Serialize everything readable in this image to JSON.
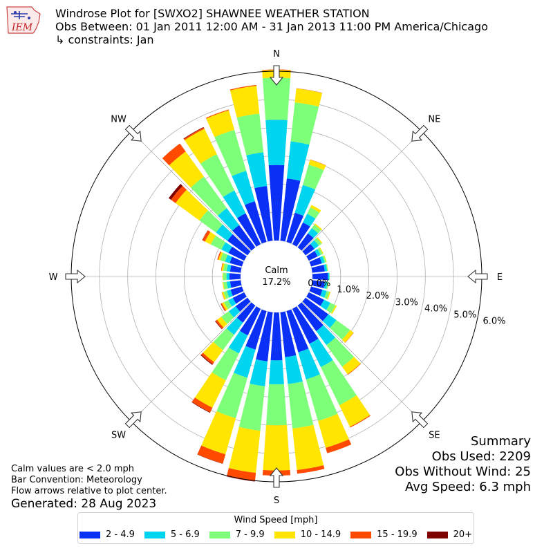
{
  "logo": {
    "text": "IEM"
  },
  "header": {
    "title": "Windrose Plot for [SWXO2] SHAWNEE WEATHER STATION",
    "obs_between": "Obs Between: 01 Jan 2011 12:00 AM - 31 Jan 2013 11:00 PM America/Chicago",
    "constraints": "↳ constraints: Jan"
  },
  "summary": {
    "title": "Summary",
    "obs_used": "Obs Used: 2209",
    "obs_without_wind": "Obs Without Wind: 25",
    "avg_speed": "Avg Speed: 6.3 mph"
  },
  "notes": {
    "calm_note": "Calm values are < 2.0 mph",
    "bar_convention": "Bar Convention: Meteorology",
    "flow_arrows": "Flow arrows relative to plot center."
  },
  "generated": "Generated: 28 Aug 2023",
  "chart_data": {
    "type": "windrose",
    "title": "Windrose Plot for [SWXO2] SHAWNEE WEATHER STATION",
    "calm_label": "Calm",
    "calm_value": "17.2%",
    "directions": [
      "N",
      "NE",
      "E",
      "SE",
      "S",
      "SW",
      "W",
      "NW"
    ],
    "radial_ticks": [
      "0.0%",
      "1.0%",
      "2.0%",
      "3.0%",
      "4.0%",
      "5.0%",
      "6.0%"
    ],
    "radial_max": 6.0,
    "legend_title": "Wind Speed [mph]",
    "colors": [
      "#0a2ff5",
      "#00d5f0",
      "#7dff7a",
      "#ffe500",
      "#ff4a00",
      "#800000"
    ],
    "speed_bins": [
      "2 - 4.9",
      "5 - 6.9",
      "7 - 9.9",
      "10 - 14.9",
      "15 - 19.9",
      "20+"
    ],
    "sector_angles": [
      0,
      10,
      20,
      30,
      40,
      50,
      60,
      70,
      80,
      90,
      100,
      110,
      120,
      130,
      140,
      150,
      160,
      170,
      180,
      190,
      200,
      210,
      220,
      230,
      240,
      250,
      260,
      270,
      280,
      290,
      300,
      310,
      320,
      330,
      340,
      350
    ],
    "cumulative": [
      [
        2.68,
        4.28,
        5.77,
        6.04,
        6.06,
        6.06
      ],
      [
        2.22,
        3.54,
        4.93,
        5.42,
        5.43,
        5.43
      ],
      [
        1.08,
        2.1,
        2.85,
        3.03,
        3.04,
        3.04
      ],
      [
        0.86,
        1.2,
        1.45,
        1.55,
        1.55,
        1.55
      ],
      [
        0.62,
        0.85,
        1.0,
        1.05,
        1.05,
        1.05
      ],
      [
        0.39,
        0.58,
        0.7,
        0.74,
        0.74,
        0.74
      ],
      [
        0.35,
        0.47,
        0.55,
        0.58,
        0.58,
        0.58
      ],
      [
        0.4,
        0.5,
        0.56,
        0.58,
        0.58,
        0.58
      ],
      [
        0.45,
        0.53,
        0.56,
        0.57,
        0.57,
        0.57
      ],
      [
        0.55,
        0.6,
        0.61,
        0.61,
        0.61,
        0.61
      ],
      [
        0.45,
        0.54,
        0.58,
        0.59,
        0.59,
        0.59
      ],
      [
        0.42,
        0.58,
        0.68,
        0.72,
        0.72,
        0.72
      ],
      [
        0.6,
        0.85,
        1.05,
        1.1,
        1.1,
        1.1
      ],
      [
        1.0,
        1.35,
        1.95,
        2.1,
        2.11,
        2.11
      ],
      [
        1.12,
        1.73,
        2.68,
        3.01,
        3.03,
        3.03
      ],
      [
        1.38,
        2.3,
        3.8,
        4.65,
        4.68,
        4.68
      ],
      [
        1.52,
        2.52,
        4.05,
        5.04,
        5.24,
        5.24
      ],
      [
        1.6,
        2.56,
        4.14,
        5.62,
        5.75,
        5.75
      ],
      [
        1.7,
        2.55,
        4.0,
        5.6,
        5.78,
        5.78
      ],
      [
        1.75,
        2.64,
        4.22,
        5.72,
        6.02,
        6.03
      ],
      [
        1.42,
        2.46,
        3.95,
        5.28,
        5.62,
        5.63
      ],
      [
        1.05,
        1.76,
        2.82,
        3.9,
        4.08,
        4.1
      ],
      [
        0.75,
        1.28,
        1.95,
        2.48,
        2.57,
        2.6
      ],
      [
        0.52,
        0.82,
        1.15,
        1.33,
        1.4,
        1.42
      ],
      [
        0.45,
        0.63,
        0.8,
        0.88,
        0.92,
        0.93
      ],
      [
        0.42,
        0.56,
        0.68,
        0.74,
        0.75,
        0.75
      ],
      [
        0.38,
        0.5,
        0.62,
        0.65,
        0.65,
        0.65
      ],
      [
        0.4,
        0.5,
        0.62,
        0.64,
        0.64,
        0.64
      ],
      [
        0.38,
        0.5,
        0.62,
        0.68,
        0.7,
        0.7
      ],
      [
        0.45,
        0.62,
        0.8,
        0.87,
        0.91,
        0.91
      ],
      [
        0.62,
        0.9,
        1.32,
        1.55,
        1.65,
        1.66
      ],
      [
        0.88,
        1.38,
        2.1,
        3.15,
        3.35,
        3.45
      ],
      [
        0.98,
        1.72,
        3.1,
        4.2,
        4.55,
        4.55
      ],
      [
        1.22,
        2.12,
        3.55,
        4.55,
        4.6,
        4.62
      ],
      [
        1.5,
        2.62,
        4.13,
        4.85,
        4.88,
        4.88
      ],
      [
        1.95,
        3.15,
        4.53,
        5.52,
        5.55,
        5.55
      ]
    ]
  }
}
